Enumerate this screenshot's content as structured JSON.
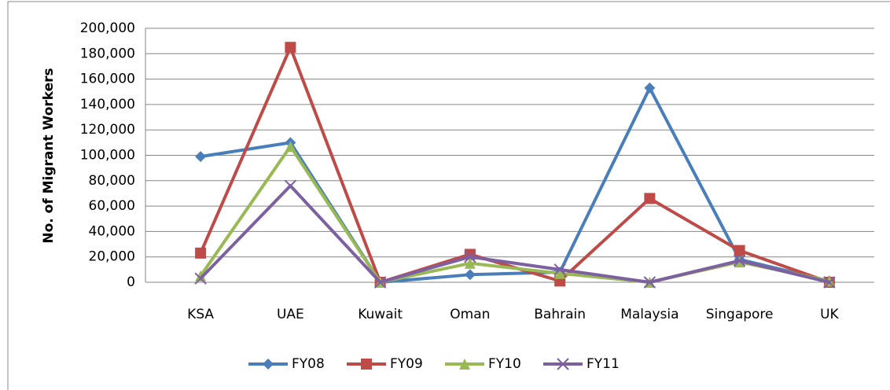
{
  "chart_data": {
    "type": "line",
    "y_label": "No. of Migrant Workers",
    "categories": [
      "KSA",
      "UAE",
      "Kuwait",
      "Oman",
      "Bahrain",
      "Malaysia",
      "Singapore",
      "UK"
    ],
    "series": [
      {
        "name": "FY08",
        "color": "#4a7ebb",
        "marker": "diamond",
        "values": [
          99000,
          110000,
          0,
          6000,
          8000,
          153000,
          18000,
          1000
        ]
      },
      {
        "name": "FY09",
        "color": "#be4b48",
        "marker": "square",
        "values": [
          23000,
          185000,
          0,
          22000,
          1000,
          66000,
          25000,
          0
        ]
      },
      {
        "name": "FY10",
        "color": "#98b954",
        "marker": "triangle",
        "values": [
          5000,
          107000,
          0,
          15000,
          7000,
          0,
          16000,
          1000
        ]
      },
      {
        "name": "FY11",
        "color": "#7d60a0",
        "marker": "x",
        "values": [
          3000,
          76000,
          0,
          20000,
          10000,
          0,
          17000,
          0
        ]
      }
    ],
    "ylim": [
      0,
      200000
    ],
    "yticks": [
      0,
      {
        "value": 20000,
        "label": "20,000"
      },
      {
        "value": 40000,
        "label": "40,000"
      },
      {
        "value": 60000,
        "label": "60,000"
      },
      {
        "value": 80000,
        "label": "80,000"
      },
      {
        "value": 100000,
        "label": "100,000"
      },
      {
        "value": 120000,
        "label": "120,000"
      },
      {
        "value": 140000,
        "label": "140,000"
      },
      {
        "value": 160000,
        "label": "160,000"
      },
      {
        "value": 180000,
        "label": "180,000"
      },
      {
        "value": 200000,
        "label": "200,000"
      }
    ],
    "grid": true,
    "legend": "bottom"
  }
}
